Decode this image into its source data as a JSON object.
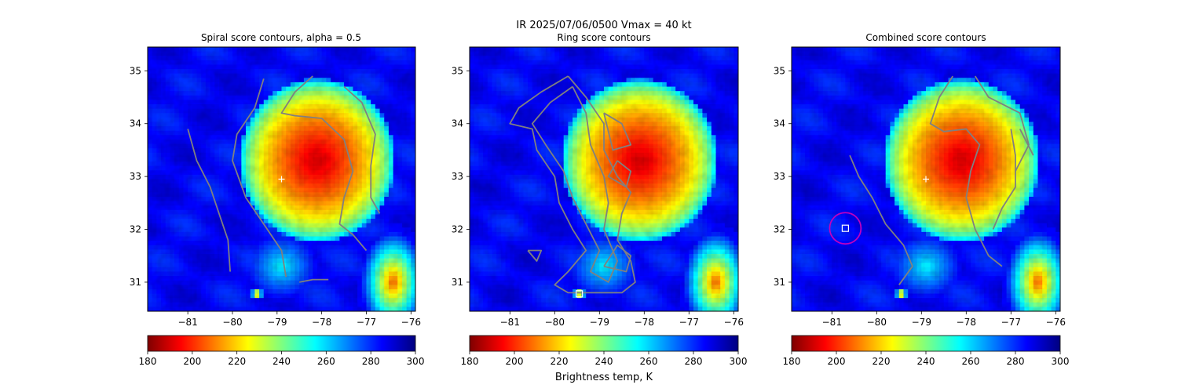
{
  "suptitle": "IR  2025/07/06/0500    Vmax = 40 kt",
  "colorbar_label": "Brightness temp, K",
  "colorbar": {
    "range": [
      180,
      300
    ],
    "ticks": [
      180,
      200,
      220,
      240,
      260,
      280,
      300
    ],
    "colormap": "jet_r",
    "stops": [
      "#7f0000",
      "#ff0000",
      "#ff7f00",
      "#ffff00",
      "#7fff7f",
      "#00ffff",
      "#007fff",
      "#0000ff",
      "#00007f"
    ]
  },
  "storm_center": {
    "lon": -78.9,
    "lat": 32.95,
    "color": "#ffffff"
  },
  "chart_data": [
    {
      "type": "heatmap",
      "title": "Spiral score contours, alpha =  0.5",
      "xlim": [
        -81.9,
        -75.9
      ],
      "ylim": [
        30.45,
        35.45
      ],
      "xticks": [
        -81,
        -80,
        -79,
        -78,
        -77,
        -76
      ],
      "yticks": [
        31,
        32,
        33,
        34,
        35
      ],
      "contour_color": "#808080",
      "contours": [
        [
          [
            -81.0,
            33.9
          ],
          [
            -80.8,
            33.3
          ],
          [
            -80.5,
            32.8
          ],
          [
            -80.3,
            32.3
          ],
          [
            -80.1,
            31.8
          ],
          [
            -80.05,
            31.2
          ]
        ],
        [
          [
            -79.3,
            34.85
          ],
          [
            -79.5,
            34.3
          ],
          [
            -79.9,
            33.8
          ],
          [
            -80.0,
            33.3
          ],
          [
            -79.7,
            32.6
          ],
          [
            -79.3,
            32.1
          ],
          [
            -78.9,
            31.6
          ],
          [
            -78.8,
            31.1
          ]
        ],
        [
          [
            -78.5,
            31.0
          ],
          [
            -78.2,
            31.05
          ],
          [
            -77.85,
            31.05
          ]
        ],
        [
          [
            -78.2,
            34.9
          ],
          [
            -78.6,
            34.6
          ],
          [
            -78.9,
            34.2
          ],
          [
            -78.6,
            34.15
          ],
          [
            -78.0,
            34.1
          ],
          [
            -77.5,
            33.7
          ],
          [
            -77.3,
            33.1
          ],
          [
            -77.5,
            32.6
          ],
          [
            -77.6,
            32.1
          ],
          [
            -77.3,
            31.9
          ],
          [
            -77.0,
            31.6
          ]
        ],
        [
          [
            -77.5,
            34.7
          ],
          [
            -77.1,
            34.4
          ],
          [
            -76.8,
            33.8
          ],
          [
            -76.9,
            33.2
          ],
          [
            -76.9,
            32.6
          ],
          [
            -76.7,
            32.3
          ]
        ]
      ],
      "markers": [
        {
          "kind": "plus",
          "lon": -78.9,
          "lat": 32.95,
          "color": "#ffffff"
        }
      ]
    },
    {
      "type": "heatmap",
      "title": "Ring score contours",
      "xlim": [
        -81.9,
        -75.9
      ],
      "ylim": [
        30.45,
        35.45
      ],
      "xticks": [
        -81,
        -80,
        -79,
        -78,
        -77,
        -76
      ],
      "yticks": [
        31,
        32,
        33,
        34,
        35
      ],
      "contour_color": "#808080",
      "contours": [
        [
          [
            -79.7,
            34.9
          ],
          [
            -80.3,
            34.6
          ],
          [
            -80.8,
            34.3
          ],
          [
            -81.0,
            34.0
          ],
          [
            -80.5,
            33.9
          ],
          [
            -80.4,
            33.5
          ],
          [
            -80.0,
            33.0
          ],
          [
            -79.9,
            32.5
          ],
          [
            -79.6,
            32.0
          ],
          [
            -79.3,
            31.6
          ],
          [
            -79.7,
            31.2
          ],
          [
            -80.0,
            30.95
          ],
          [
            -79.7,
            30.8
          ],
          [
            -79.0,
            30.8
          ],
          [
            -78.5,
            30.8
          ],
          [
            -78.2,
            31.0
          ],
          [
            -78.3,
            31.4
          ],
          [
            -78.6,
            31.8
          ],
          [
            -78.5,
            32.3
          ],
          [
            -78.3,
            32.7
          ],
          [
            -78.6,
            33.0
          ],
          [
            -78.9,
            33.5
          ],
          [
            -78.9,
            34.0
          ],
          [
            -79.3,
            34.5
          ],
          [
            -79.7,
            34.9
          ]
        ],
        [
          [
            -79.6,
            34.7
          ],
          [
            -80.1,
            34.4
          ],
          [
            -80.5,
            34.0
          ],
          [
            -80.2,
            33.6
          ],
          [
            -79.8,
            33.1
          ],
          [
            -79.6,
            32.6
          ],
          [
            -79.3,
            32.1
          ],
          [
            -79.0,
            31.6
          ],
          [
            -79.2,
            31.2
          ],
          [
            -78.8,
            31.0
          ],
          [
            -78.6,
            31.4
          ],
          [
            -78.9,
            32.0
          ],
          [
            -78.8,
            32.5
          ],
          [
            -78.9,
            33.0
          ],
          [
            -79.2,
            33.6
          ],
          [
            -79.3,
            34.2
          ],
          [
            -79.6,
            34.7
          ]
        ],
        [
          [
            -78.9,
            31.3
          ],
          [
            -78.4,
            31.2
          ],
          [
            -78.3,
            31.5
          ],
          [
            -78.6,
            31.7
          ],
          [
            -78.9,
            31.3
          ]
        ],
        [
          [
            -78.6,
            33.3
          ],
          [
            -78.3,
            33.1
          ],
          [
            -78.4,
            32.8
          ],
          [
            -78.8,
            33.0
          ],
          [
            -78.6,
            33.3
          ]
        ],
        [
          [
            -78.9,
            34.2
          ],
          [
            -78.5,
            34.0
          ],
          [
            -78.3,
            33.6
          ],
          [
            -78.7,
            33.5
          ],
          [
            -78.9,
            34.2
          ]
        ],
        [
          [
            -80.6,
            31.6
          ],
          [
            -80.3,
            31.6
          ],
          [
            -80.4,
            31.4
          ],
          [
            -80.6,
            31.6
          ]
        ]
      ],
      "markers": [
        {
          "kind": "square",
          "lon": -79.45,
          "lat": 30.78,
          "color": "#ffffff"
        }
      ]
    },
    {
      "type": "heatmap",
      "title": "Combined score contours",
      "xlim": [
        -81.9,
        -75.9
      ],
      "ylim": [
        30.45,
        35.45
      ],
      "xticks": [
        -81,
        -80,
        -79,
        -78,
        -77,
        -76
      ],
      "yticks": [
        31,
        32,
        33,
        34,
        35
      ],
      "contour_color": "#808080",
      "contours": [
        [
          [
            -80.6,
            33.4
          ],
          [
            -80.4,
            33.0
          ],
          [
            -80.1,
            32.6
          ],
          [
            -79.8,
            32.1
          ],
          [
            -79.4,
            31.7
          ],
          [
            -79.2,
            31.3
          ],
          [
            -79.5,
            30.95
          ]
        ],
        [
          [
            -78.3,
            34.9
          ],
          [
            -78.6,
            34.5
          ],
          [
            -78.8,
            34.0
          ],
          [
            -78.5,
            33.85
          ],
          [
            -78.0,
            33.9
          ],
          [
            -77.7,
            33.6
          ],
          [
            -77.9,
            33.1
          ],
          [
            -78.0,
            32.6
          ],
          [
            -77.8,
            32.0
          ],
          [
            -77.5,
            31.5
          ],
          [
            -77.2,
            31.3
          ]
        ],
        [
          [
            -77.0,
            33.9
          ],
          [
            -76.9,
            33.4
          ],
          [
            -76.9,
            32.8
          ],
          [
            -77.2,
            32.4
          ],
          [
            -77.4,
            32.0
          ]
        ],
        [
          [
            -77.8,
            34.9
          ],
          [
            -77.5,
            34.5
          ],
          [
            -76.8,
            34.2
          ],
          [
            -76.6,
            33.6
          ],
          [
            -76.9,
            33.1
          ]
        ],
        [
          [
            -76.8,
            33.9
          ],
          [
            -76.5,
            33.4
          ]
        ]
      ],
      "markers": [
        {
          "kind": "plus",
          "lon": -78.9,
          "lat": 32.95,
          "color": "#ffffff"
        },
        {
          "kind": "square",
          "lon": -80.7,
          "lat": 32.02,
          "color": "#ffffff"
        },
        {
          "kind": "circle",
          "lon": -80.7,
          "lat": 32.02,
          "radius_deg": 0.35,
          "color": "#c000c0"
        }
      ]
    }
  ]
}
